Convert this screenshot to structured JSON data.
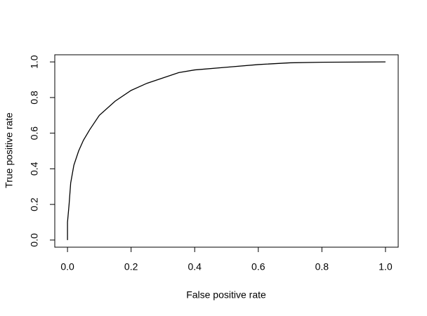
{
  "chart_data": {
    "type": "line",
    "x_label": "False positive rate",
    "y_label": "True positive rate",
    "x": [
      0,
      0,
      0.005,
      0.01,
      0.02,
      0.035,
      0.05,
      0.07,
      0.1,
      0.15,
      0.2,
      0.25,
      0.3,
      0.35,
      0.4,
      0.5,
      0.6,
      0.7,
      0.8,
      1
    ],
    "series": [
      {
        "color": "#000000",
        "values": [
          0,
          0.1,
          0.2,
          0.32,
          0.42,
          0.5,
          0.56,
          0.62,
          0.7,
          0.78,
          0.84,
          0.88,
          0.91,
          0.94,
          0.955,
          0.97,
          0.985,
          0.995,
          0.998,
          1
        ]
      }
    ],
    "xlim": [
      -0.04,
      1.04
    ],
    "ylim": [
      -0.04,
      1.04
    ],
    "xticks": [
      {
        "value": 0,
        "label": "0.0"
      },
      0.2,
      0.4,
      0.6,
      0.8,
      {
        "value": 1,
        "label": "1.0"
      }
    ],
    "yticks": [
      {
        "value": 0,
        "label": "0.0"
      },
      0.2,
      0.4,
      0.6,
      0.8,
      {
        "value": 1,
        "label": "1.0"
      }
    ]
  }
}
